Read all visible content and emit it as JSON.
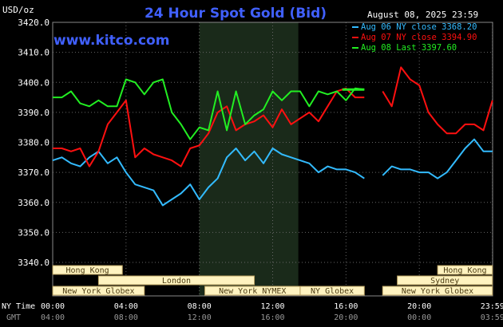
{
  "header": {
    "title": "24 Hour Spot Gold (Bid)",
    "unit": "USD/oz",
    "date": "August 08, 2025 23:59",
    "website": "www.kitco.com"
  },
  "colors": {
    "background": "#000000",
    "grid": "#666666",
    "title": "#4060ff",
    "website": "#4060ff",
    "blue": "#33bbff",
    "red": "#ff1010",
    "green": "#22ee22",
    "session_fill": "#fff3c0",
    "session_text": "#4a3a10",
    "shade": "#1a2a1a"
  },
  "legend": [
    {
      "label": "Aug 06 NY close 3368.20",
      "color": "#33bbff"
    },
    {
      "label": "Aug 07 NY close 3394.90",
      "color": "#ff1010"
    },
    {
      "label": "Aug 08 Last 3397.60",
      "color": "#22ee22"
    }
  ],
  "axes": {
    "ny_time_label": "NY Time",
    "gmt_label": "GMT",
    "ny_ticks": [
      "00:00",
      "04:00",
      "08:00",
      "12:00",
      "16:00",
      "20:00",
      "23:59"
    ],
    "gmt_ticks": [
      "04:00",
      "08:00",
      "12:00",
      "16:00",
      "20:00",
      "00:00",
      "03:59"
    ]
  },
  "sessions": [
    {
      "label": "Hong Kong",
      "start": 0.0,
      "end": 3.8,
      "row": 0
    },
    {
      "label": "London",
      "start": 2.5,
      "end": 11.0,
      "row": 1
    },
    {
      "label": "New York Globex",
      "start": 0.0,
      "end": 5.0,
      "row": 2
    },
    {
      "label": "New York NYMEX",
      "start": 8.3,
      "end": 13.5,
      "row": 2
    },
    {
      "label": "NY Globex",
      "start": 13.5,
      "end": 17.0,
      "row": 2
    },
    {
      "label": "Hong Kong",
      "start": 21.0,
      "end": 23.99,
      "row": 0
    },
    {
      "label": "Sydney",
      "start": 18.8,
      "end": 23.99,
      "row": 1
    },
    {
      "label": "New York Globex",
      "start": 18.0,
      "end": 23.99,
      "row": 2
    }
  ],
  "chart_data": {
    "type": "line",
    "xlabel": "NY Time",
    "ylabel": "USD/oz",
    "xlim": [
      0,
      24
    ],
    "ylim": [
      3340,
      3420
    ],
    "yticks": [
      "3340.0",
      "3350.0",
      "3360.0",
      "3370.0",
      "3380.0",
      "3390.0",
      "3400.0",
      "3410.0",
      "3420.0"
    ],
    "shaded_region": [
      8.0,
      13.4
    ],
    "grid": true,
    "legend_position": "top-right",
    "series": [
      {
        "name": "Aug 06 NY close 3368.20",
        "x": [
          0,
          0.5,
          1,
          1.5,
          2,
          2.5,
          3,
          3.5,
          4,
          4.5,
          5,
          5.5,
          6,
          6.5,
          7,
          7.5,
          8,
          8.5,
          9,
          9.5,
          10,
          10.5,
          11,
          11.5,
          12,
          12.5,
          13,
          13.5,
          14,
          14.5,
          15,
          15.5,
          16,
          16.5,
          17,
          18,
          18.5,
          19,
          19.5,
          20,
          20.5,
          21,
          21.5,
          22,
          22.5,
          23,
          23.5,
          23.99
        ],
        "y": [
          3374,
          3375,
          3373,
          3372,
          3375,
          3377,
          3373,
          3375,
          3370,
          3366,
          3365,
          3364,
          3359,
          3361,
          3363,
          3366,
          3361,
          3365,
          3368,
          3375,
          3378,
          3374,
          3377,
          3373,
          3378,
          3376,
          3375,
          3374,
          3373,
          3370,
          3372,
          3371,
          3371,
          3370,
          3368,
          3369,
          3372,
          3371,
          3371,
          3370,
          3370,
          3368,
          3370,
          3374,
          3378,
          3381,
          3377,
          3377
        ]
      },
      {
        "name": "Aug 07 NY close 3394.90",
        "x": [
          0,
          0.5,
          1,
          1.5,
          2,
          2.5,
          3,
          3.5,
          4,
          4.5,
          5,
          5.5,
          6,
          6.5,
          7,
          7.5,
          8,
          8.5,
          9,
          9.5,
          10,
          10.5,
          11,
          11.5,
          12,
          12.5,
          13,
          13.5,
          14,
          14.5,
          15,
          15.5,
          16,
          16.5,
          17,
          18,
          18.5,
          19,
          19.5,
          20,
          20.5,
          21,
          21.5,
          22,
          22.5,
          23,
          23.5,
          23.99
        ],
        "y": [
          3378,
          3378,
          3377,
          3378,
          3372,
          3377,
          3386,
          3390,
          3394,
          3375,
          3378,
          3376,
          3375,
          3374,
          3372,
          3378,
          3379,
          3383,
          3390,
          3392,
          3384,
          3386,
          3387,
          3389,
          3385,
          3391,
          3386,
          3388,
          3390,
          3387,
          3392,
          3397,
          3398,
          3395,
          3395,
          3397,
          3392,
          3405,
          3401,
          3399,
          3390,
          3386,
          3383,
          3383,
          3386,
          3386,
          3384,
          3394
        ]
      },
      {
        "name": "Aug 08 Last 3397.60",
        "x": [
          0,
          0.5,
          1,
          1.5,
          2,
          2.5,
          3,
          3.5,
          4,
          4.5,
          5,
          5.5,
          6,
          6.5,
          7,
          7.5,
          8,
          8.5,
          9,
          9.5,
          10,
          10.5,
          11,
          11.5,
          12,
          12.5,
          13,
          13.5,
          14,
          14.5,
          15,
          15.5,
          16,
          16.5,
          17
        ],
        "y": [
          3395,
          3395,
          3397,
          3393,
          3392,
          3394,
          3392,
          3392,
          3401,
          3400,
          3396,
          3400,
          3401,
          3390,
          3386,
          3381,
          3385,
          3384,
          3397,
          3384,
          3397,
          3386,
          3389,
          3391,
          3397,
          3394,
          3397,
          3397,
          3392,
          3397,
          3396,
          3397,
          3394,
          3398,
          3397.6
        ]
      }
    ]
  }
}
